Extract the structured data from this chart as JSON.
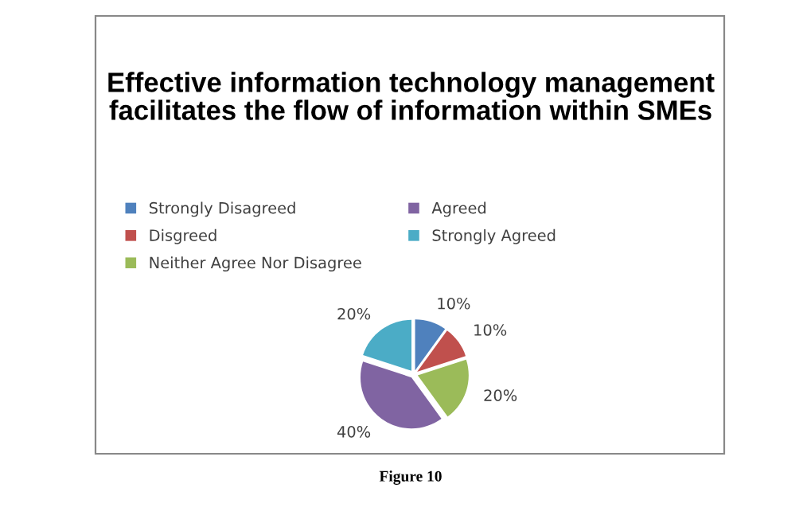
{
  "chart_data": {
    "type": "pie",
    "title": "Effective information technology management facilitates the flow of information within SMEs",
    "categories": [
      "Strongly Disagreed",
      "Disgreed",
      "Neither Agree Nor Disagree",
      "Agreed",
      "Strongly Agreed"
    ],
    "values": [
      10,
      10,
      20,
      40,
      20
    ],
    "colors": [
      "#4f81bd",
      "#c0504d",
      "#9bbb59",
      "#8064a2",
      "#4bacc6"
    ],
    "value_labels": [
      "10%",
      "10%",
      "20%",
      "40%",
      "20%"
    ],
    "legend": "top",
    "annotations": [
      "Figure 10"
    ]
  }
}
